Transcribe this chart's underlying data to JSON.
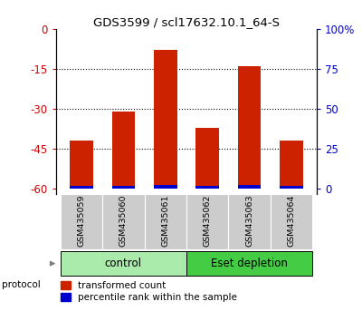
{
  "title": "GDS3599 / scl17632.10.1_64-S",
  "samples": [
    "GSM435059",
    "GSM435060",
    "GSM435061",
    "GSM435062",
    "GSM435063",
    "GSM435064"
  ],
  "red_bar_tops": [
    -42,
    -31,
    -8,
    -37,
    -14,
    -42
  ],
  "red_bar_bottoms": [
    -60,
    -60,
    -60,
    -60,
    -60,
    -60
  ],
  "blue_bar_tops": [
    -59.0,
    -59.0,
    -58.5,
    -59.0,
    -58.5,
    -59.0
  ],
  "blue_bar_bottoms": [
    -60,
    -60,
    -60,
    -60,
    -60,
    -60
  ],
  "ylim_left": [
    -62,
    0
  ],
  "yticks_left": [
    0,
    -15,
    -30,
    -45,
    -60
  ],
  "yticks_right_labels": [
    "100%",
    "75",
    "50",
    "25",
    "0"
  ],
  "right_tick_positions": [
    0,
    -15,
    -30,
    -45,
    -60
  ],
  "ylabel_left_color": "#cc0000",
  "ylabel_right_color": "#0000cc",
  "bar_red": "#cc2200",
  "bar_blue": "#0000cc",
  "control_color": "#aaeaaa",
  "eset_color": "#44cc44",
  "tick_label_bg": "#cccccc",
  "bar_width": 0.55
}
